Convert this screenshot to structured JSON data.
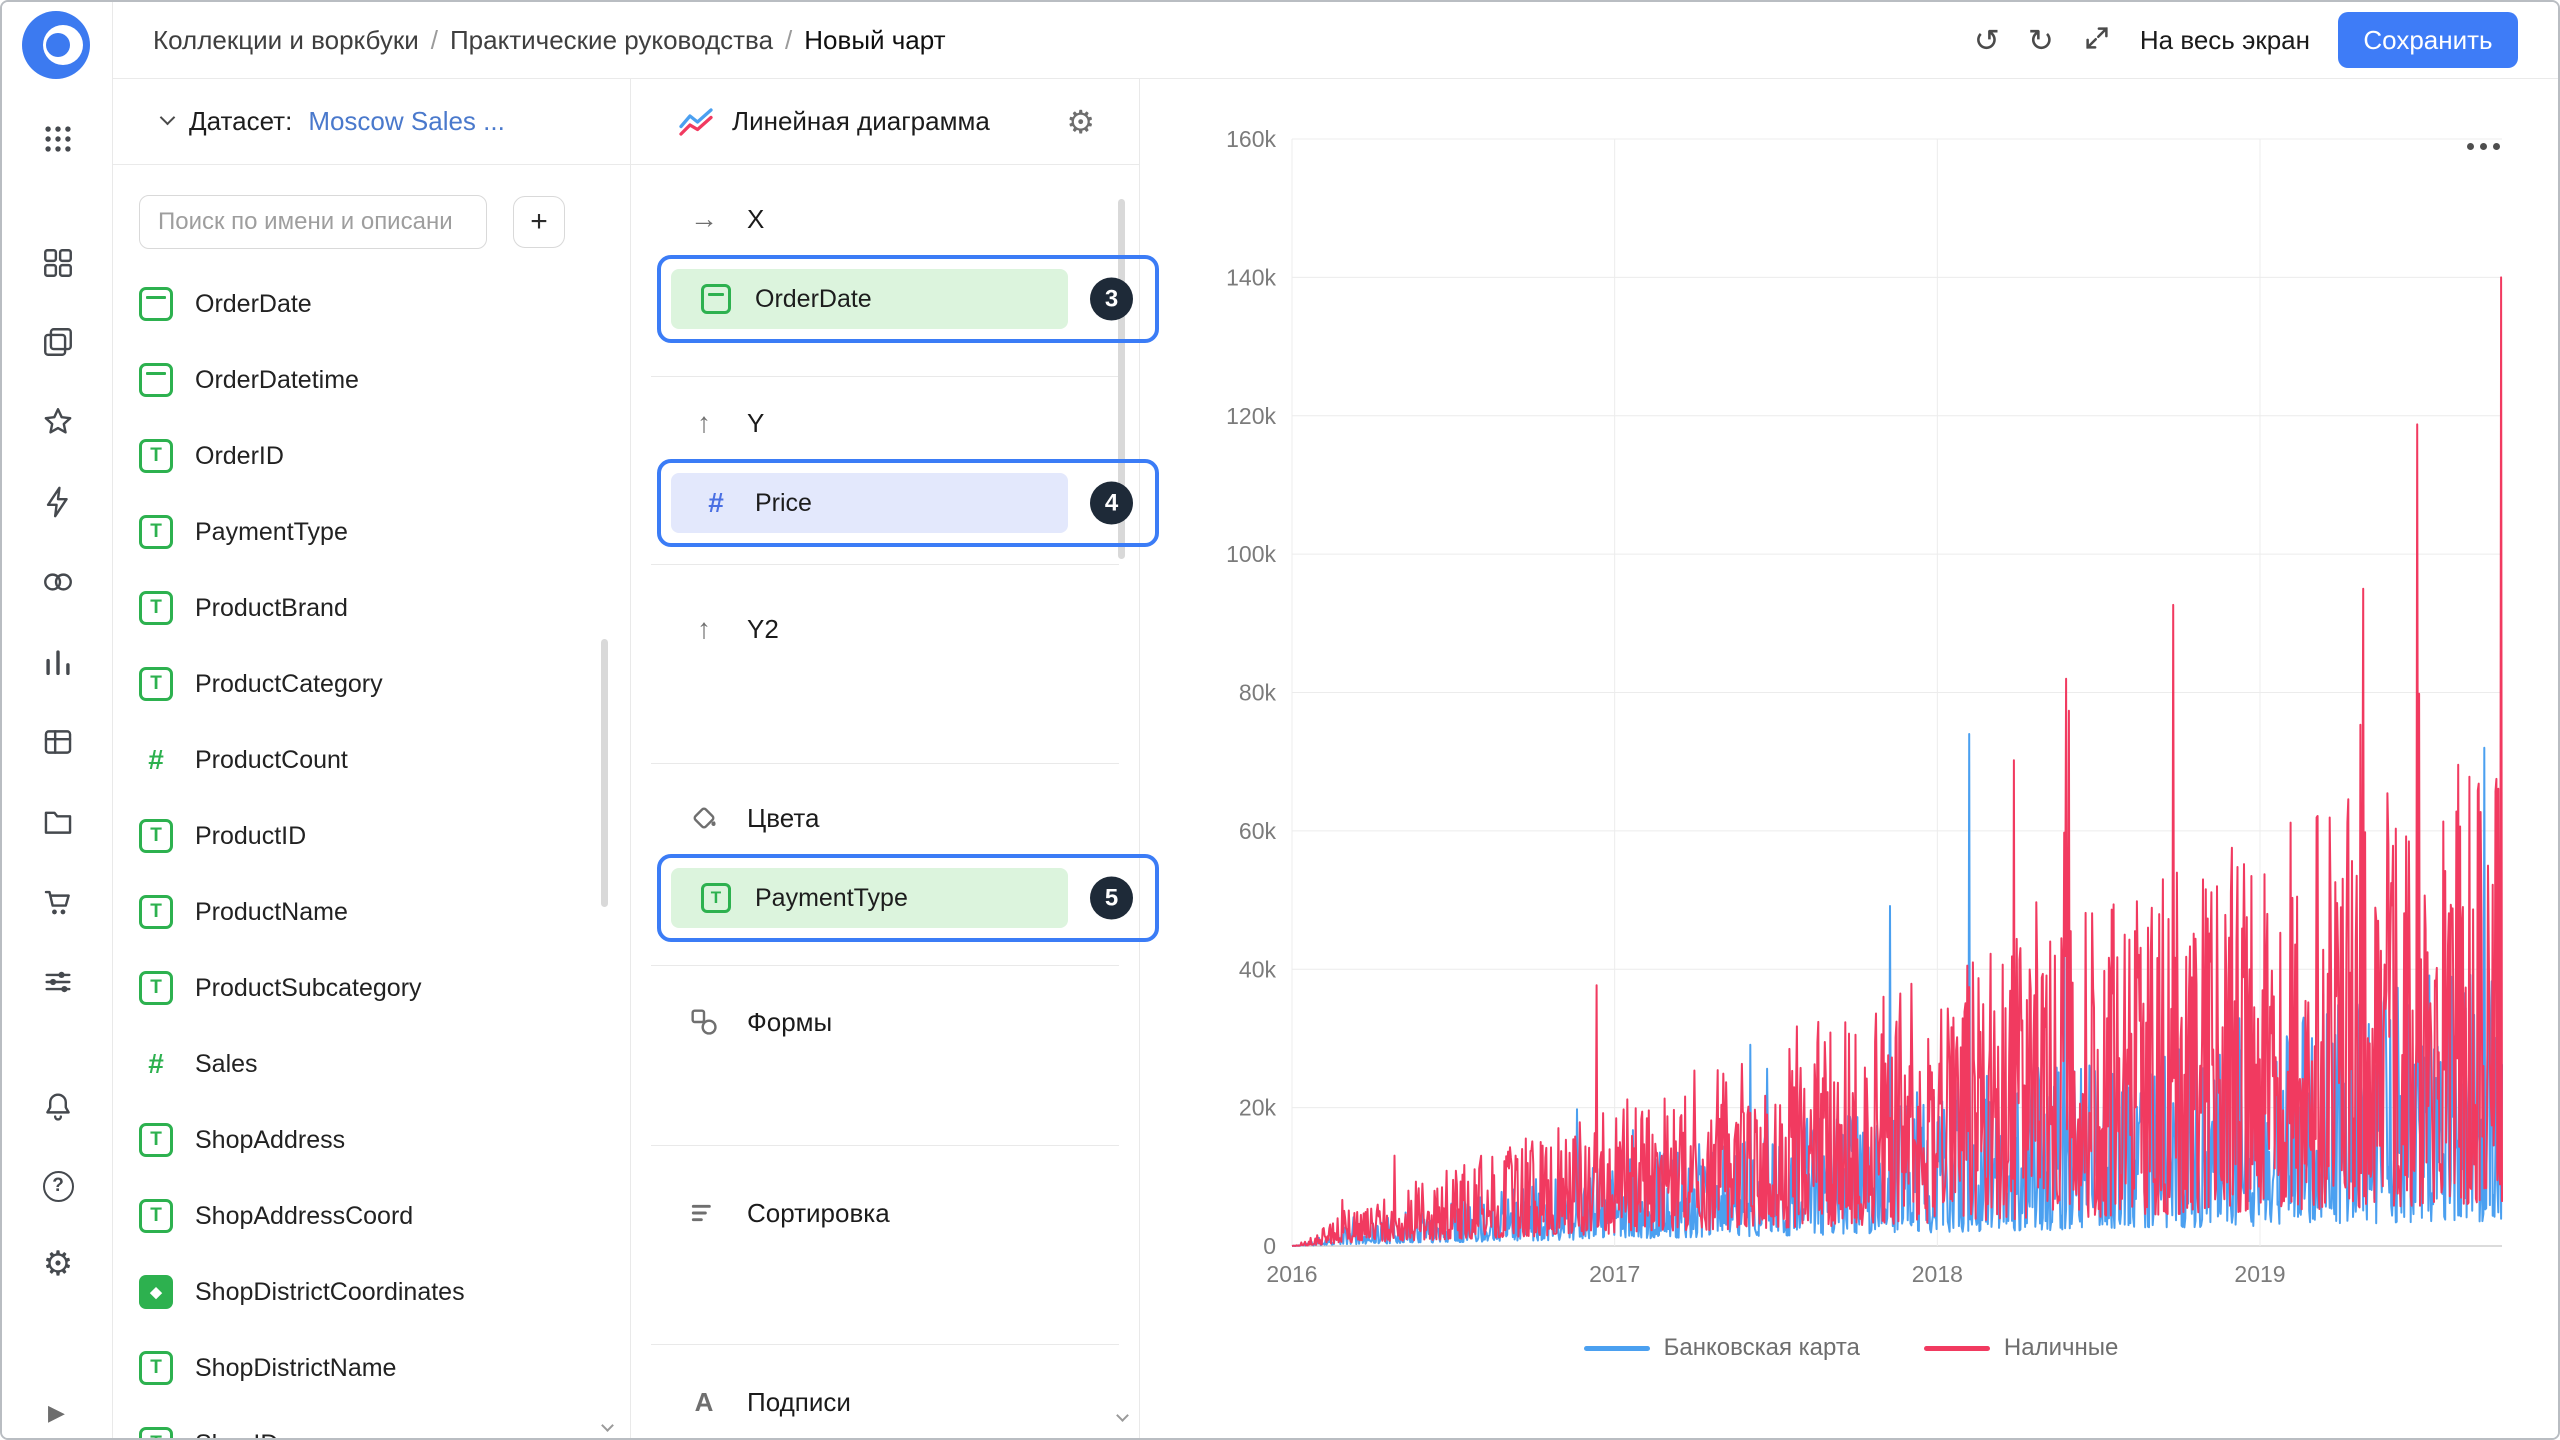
{
  "topbar": {
    "breadcrumb": [
      "Коллекции и воркбуки",
      "Практические руководства",
      "Новый чарт"
    ],
    "separator": "/",
    "fullscreen_label": "На весь экран",
    "save_label": "Сохранить"
  },
  "icons": {
    "undo": "↺",
    "redo": "↻",
    "fullscreen": "expand-arrows",
    "dataset_chevron": "chevron-down",
    "plus": "+",
    "settings_gear": "⚙",
    "x_arrow": "→",
    "y_arrow": "↑",
    "labels_a": "A",
    "question": "?",
    "play": "▶",
    "chart_menu": "ellipsis-dots",
    "scroll_down": "chevron-down"
  },
  "dataset_panel": {
    "label": "Датасет:",
    "dataset_name": "Moscow Sales ...",
    "search_placeholder": "Поиск по имени и описани",
    "add_button": "+",
    "fields": [
      {
        "name": "OrderDate",
        "type": "date"
      },
      {
        "name": "OrderDatetime",
        "type": "date"
      },
      {
        "name": "OrderID",
        "type": "string"
      },
      {
        "name": "PaymentType",
        "type": "string"
      },
      {
        "name": "ProductBrand",
        "type": "string"
      },
      {
        "name": "ProductCategory",
        "type": "string"
      },
      {
        "name": "ProductCount",
        "type": "number"
      },
      {
        "name": "ProductID",
        "type": "string"
      },
      {
        "name": "ProductName",
        "type": "string"
      },
      {
        "name": "ProductSubcategory",
        "type": "string"
      },
      {
        "name": "Sales",
        "type": "number"
      },
      {
        "name": "ShopAddress",
        "type": "string"
      },
      {
        "name": "ShopAddressCoord",
        "type": "string"
      },
      {
        "name": "ShopDistrictCoordinates",
        "type": "geo"
      },
      {
        "name": "ShopDistrictName",
        "type": "string"
      },
      {
        "name": "ShopID",
        "type": "string"
      }
    ]
  },
  "config_panel": {
    "chart_type_label": "Линейная диаграмма",
    "sections": {
      "x": {
        "label": "X",
        "field": "OrderDate",
        "field_type": "date",
        "badge": "3"
      },
      "y": {
        "label": "Y",
        "field": "Price",
        "field_type": "number",
        "badge": "4"
      },
      "y2": {
        "label": "Y2"
      },
      "colors": {
        "label": "Цвета",
        "field": "PaymentType",
        "field_type": "string",
        "badge": "5"
      },
      "shapes": {
        "label": "Формы"
      },
      "sort": {
        "label": "Сортировка"
      },
      "labels": {
        "label": "Подписи"
      }
    }
  },
  "colors": {
    "accent": "#3e7cf7",
    "callout_blue": "#3b7cf6",
    "badge_bg": "#1e2a38",
    "field_green": "#2db14f",
    "pill_green_bg": "#dcf4dd",
    "pill_blue_bg": "#e3e8fc",
    "dataset_link": "#4a79cc",
    "series_blue": "#4ba0f0",
    "series_red": "#f13a60"
  },
  "chart_data": {
    "type": "line",
    "title": "",
    "xlabel": "",
    "ylabel": "",
    "x_ticks": [
      "2016",
      "2017",
      "2018",
      "2019"
    ],
    "x_range": [
      2016,
      2019.75
    ],
    "y_ticks": [
      "160k",
      "140k",
      "120k",
      "100k",
      "80k",
      "60k",
      "40k",
      "20k",
      "0"
    ],
    "ylim": [
      0,
      160000
    ],
    "grid": true,
    "legend_position": "bottom",
    "series": [
      {
        "name": "Банковская карта",
        "color": "#4ba0f0",
        "trend_start": 700,
        "trend_end": 30000,
        "peak_cap": 76000,
        "spikes": [
          {
            "t": 0.56,
            "v": 74000
          },
          {
            "t": 0.985,
            "v": 72000
          }
        ]
      },
      {
        "name": "Наличные",
        "color": "#f13a60",
        "trend_start": 1400,
        "trend_end": 52000,
        "peak_cap": 141000,
        "spikes": [
          {
            "t": 0.64,
            "v": 82000
          },
          {
            "t": 0.885,
            "v": 95000
          },
          {
            "t": 0.999,
            "v": 140000
          }
        ]
      }
    ],
    "synth": {
      "points": 1300,
      "seed": 11
    }
  }
}
